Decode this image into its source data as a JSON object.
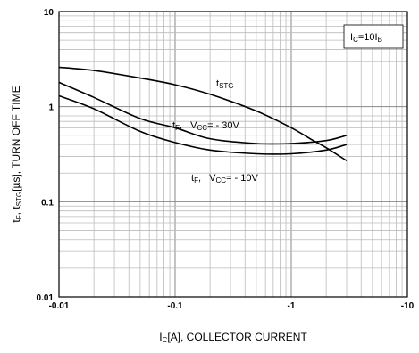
{
  "chart_data": {
    "type": "line",
    "scale": {
      "x": "log",
      "y": "log"
    },
    "x_direction": "decreasing-right (negative collector current)",
    "xlim": [
      -0.01,
      -10
    ],
    "ylim": [
      0.01,
      10
    ],
    "grid": true,
    "x_ticks": [
      "-0.01",
      "-0.1",
      "-1",
      "-10"
    ],
    "y_ticks": [
      "0.01",
      "0.1",
      "1",
      "10"
    ],
    "xlabel": {
      "main": "I",
      "sub": "C",
      "rest": "[A], COLLECTOR CURRENT"
    },
    "ylabel": {
      "p1": "t",
      "s1": "F",
      "p2": ", t",
      "s2": "STG",
      "p3": "[µs], TURN OFF TIME"
    },
    "condition": {
      "main": "I",
      "s1": "C",
      "mid": "=10I",
      "s2": "B"
    },
    "series": [
      {
        "name": "tSTG",
        "label": {
          "main": "t",
          "sub": "STG"
        },
        "x": [
          -0.01,
          -0.02,
          -0.05,
          -0.1,
          -0.2,
          -0.5,
          -1,
          -1.5,
          -2,
          -3
        ],
        "y": [
          2.6,
          2.4,
          2.0,
          1.7,
          1.35,
          0.9,
          0.6,
          0.45,
          0.37,
          0.27
        ]
      },
      {
        "name": "tF, VCC= - 30V",
        "label": {
          "main": "t",
          "sub": "F",
          "mid": ",   V",
          "sub2": "CC",
          "rest": "= - 30V"
        },
        "x": [
          -0.01,
          -0.02,
          -0.05,
          -0.1,
          -0.2,
          -0.5,
          -1,
          -2,
          -3
        ],
        "y": [
          1.8,
          1.25,
          0.75,
          0.6,
          0.46,
          0.41,
          0.41,
          0.44,
          0.5
        ]
      },
      {
        "name": "tF, VCC= - 10V",
        "label": {
          "main": "t",
          "sub": "F",
          "mid": ",   V",
          "sub2": "CC",
          "rest": "= - 10V"
        },
        "x": [
          -0.01,
          -0.02,
          -0.05,
          -0.1,
          -0.2,
          -0.5,
          -1,
          -2,
          -3
        ],
        "y": [
          1.3,
          0.95,
          0.55,
          0.42,
          0.35,
          0.32,
          0.32,
          0.35,
          0.4
        ]
      }
    ]
  }
}
